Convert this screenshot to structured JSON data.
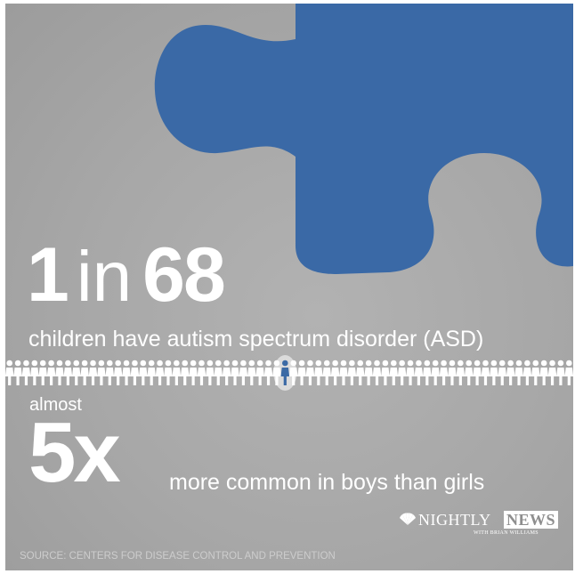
{
  "stat": {
    "numerator": "1",
    "connector": "in",
    "denominator": "68",
    "description": "children have autism spectrum disorder (ASD)"
  },
  "ratio": {
    "prefix": "almost",
    "value": "5x",
    "description": "more common in boys than girls"
  },
  "people_row": {
    "total_figures": 68,
    "highlighted_index": 33,
    "figure_color": "#ffffff",
    "highlight_color": "#3b6aa5"
  },
  "logo": {
    "word1": "NIGHTLY",
    "word2": "NEWS",
    "byline": "WITH BRIAN WILLIAMS"
  },
  "source": "SOURCE: CENTERS FOR DISEASE CONTROL AND PREVENTION",
  "colors": {
    "background": "#a9a9a9",
    "puzzle_piece": "#3a69a6",
    "text": "#ffffff"
  }
}
